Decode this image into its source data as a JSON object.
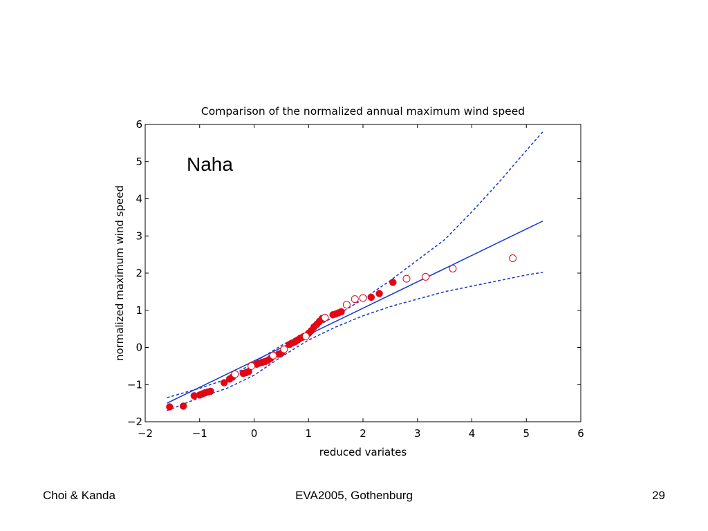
{
  "slide": {
    "footer_left": "Choi & Kanda",
    "footer_center": "EVA2005, Gothenburg",
    "footer_right": "29"
  },
  "chart_data": {
    "type": "scatter",
    "title": "Comparison of the normalized annual maximum wind speed",
    "annotation": "Naha",
    "xlabel": "reduced variates",
    "ylabel": "normalized maximum wind speed",
    "xlim": [
      -2,
      6
    ],
    "ylim": [
      -2,
      6
    ],
    "xticks": [
      -2,
      -1,
      0,
      1,
      2,
      3,
      4,
      5,
      6
    ],
    "yticks": [
      -2,
      -1,
      0,
      1,
      2,
      3,
      4,
      5,
      6
    ],
    "grid": false,
    "colors": {
      "line": "#1f3fd0",
      "points": "#e30613",
      "frame": "#000000"
    },
    "lines": [
      {
        "style": "solid",
        "x": [
          -1.6,
          5.3
        ],
        "y": [
          -1.5,
          3.4
        ]
      },
      {
        "style": "dashed",
        "x": [
          -1.6,
          -1.0,
          -0.5,
          0.0,
          0.5,
          1.0,
          1.5,
          2.0,
          2.5,
          3.0,
          3.5,
          4.0,
          4.5,
          5.0,
          5.3
        ],
        "y": [
          -1.35,
          -1.1,
          -0.85,
          -0.4,
          0.05,
          0.45,
          0.85,
          1.3,
          1.8,
          2.35,
          2.9,
          3.65,
          4.45,
          5.3,
          5.8
        ]
      },
      {
        "style": "dashed",
        "x": [
          -1.6,
          -1.0,
          -0.5,
          0.0,
          0.5,
          1.0,
          1.5,
          2.0,
          2.5,
          3.0,
          3.5,
          4.0,
          4.5,
          5.0,
          5.3
        ],
        "y": [
          -1.7,
          -1.35,
          -1.1,
          -0.75,
          -0.25,
          0.2,
          0.55,
          0.85,
          1.1,
          1.3,
          1.5,
          1.65,
          1.8,
          1.95,
          2.02
        ]
      }
    ],
    "series": [
      {
        "marker": "filled",
        "x": [
          -1.55,
          -1.3,
          -1.1,
          -1.0,
          -0.95,
          -0.9,
          -0.85,
          -0.8,
          -0.55,
          -0.45,
          -0.4,
          -0.2,
          -0.15,
          -0.1,
          0.05,
          0.1,
          0.15,
          0.2,
          0.25,
          0.3,
          0.45,
          0.5,
          0.65,
          0.7,
          0.75,
          0.8,
          0.85,
          0.9,
          0.95,
          1.0,
          1.05,
          1.1,
          1.15,
          1.2,
          1.25,
          1.45,
          1.5,
          1.55,
          1.6,
          2.15,
          2.3,
          2.55
        ],
        "y": [
          -1.6,
          -1.58,
          -1.3,
          -1.28,
          -1.25,
          -1.22,
          -1.2,
          -1.18,
          -0.95,
          -0.85,
          -0.8,
          -0.7,
          -0.68,
          -0.65,
          -0.45,
          -0.42,
          -0.4,
          -0.38,
          -0.35,
          -0.3,
          -0.18,
          -0.15,
          0.08,
          0.12,
          0.15,
          0.2,
          0.25,
          0.28,
          0.3,
          0.38,
          0.45,
          0.55,
          0.62,
          0.7,
          0.78,
          0.88,
          0.9,
          0.93,
          0.96,
          1.35,
          1.45,
          1.75
        ]
      },
      {
        "marker": "open",
        "x": [
          -0.35,
          -0.05,
          0.35,
          0.55,
          0.95,
          1.3,
          1.7,
          1.85,
          2.0,
          2.8,
          3.15,
          3.65,
          4.75
        ],
        "y": [
          -0.72,
          -0.5,
          -0.22,
          -0.05,
          0.3,
          0.8,
          1.15,
          1.3,
          1.33,
          1.85,
          1.9,
          2.12,
          2.4
        ]
      }
    ]
  }
}
